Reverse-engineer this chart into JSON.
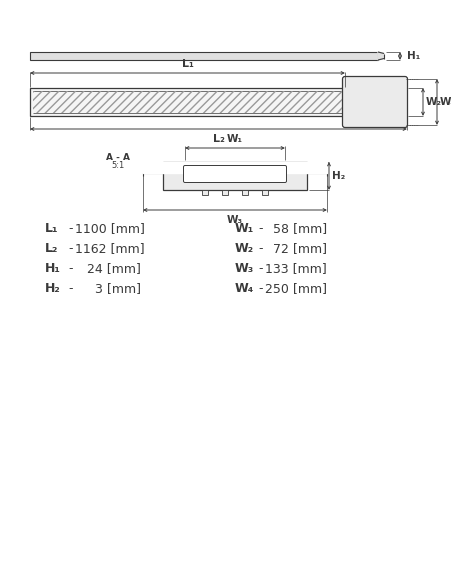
{
  "bg_color": "#ffffff",
  "line_color": "#3a3a3a",
  "dim_color": "#3a3a3a",
  "dim_labels_left": [
    [
      "L₁",
      " -",
      "1100 [mm]"
    ],
    [
      "L₂",
      " -",
      "1162 [mm]"
    ],
    [
      "H₁",
      " -",
      "   24 [mm]"
    ],
    [
      "H₂",
      " -",
      "     3 [mm]"
    ]
  ],
  "dim_labels_right": [
    [
      "W₁",
      " -",
      "  58 [mm]"
    ],
    [
      "W₂",
      " -",
      "  72 [mm]"
    ],
    [
      "W₃",
      " -",
      "133 [mm]"
    ],
    [
      "W₄",
      " -",
      "250 [mm]"
    ]
  ]
}
